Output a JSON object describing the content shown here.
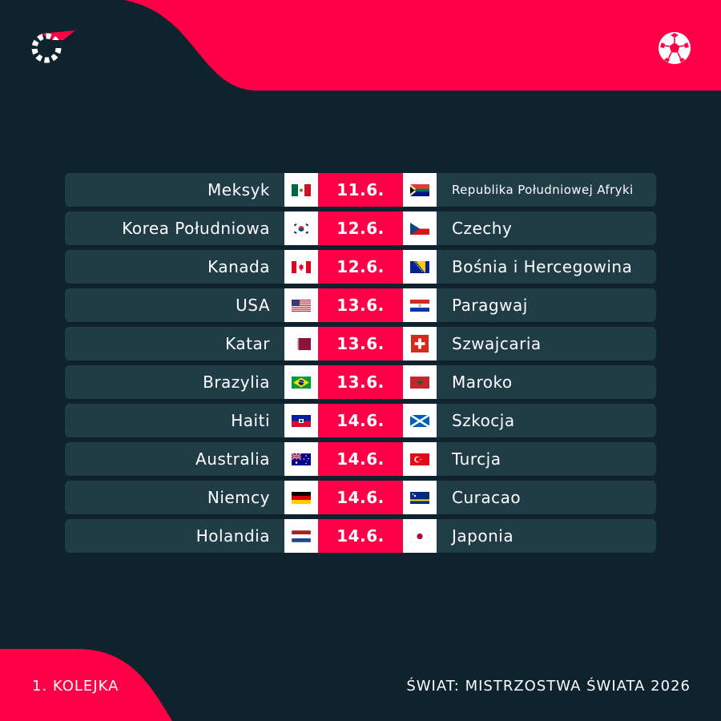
{
  "colors": {
    "background": "#0f232e",
    "accent": "#ff0046",
    "row": "#1f3c47",
    "text": "#ffffff"
  },
  "header": {
    "logo_icon": "flashscore-logo-icon",
    "sport_icon": "football-icon"
  },
  "matches": [
    {
      "home": "Meksyk",
      "home_flag": "mexico-flag-icon",
      "date": "11.6.",
      "away": "Republika Południowej Afryki",
      "away_flag": "south-africa-flag-icon"
    },
    {
      "home": "Korea Południowa",
      "home_flag": "south-korea-flag-icon",
      "date": "12.6.",
      "away": "Czechy",
      "away_flag": "czechia-flag-icon"
    },
    {
      "home": "Kanada",
      "home_flag": "canada-flag-icon",
      "date": "12.6.",
      "away": "Bośnia i Hercegowina",
      "away_flag": "bosnia-flag-icon"
    },
    {
      "home": "USA",
      "home_flag": "usa-flag-icon",
      "date": "13.6.",
      "away": "Paragwaj",
      "away_flag": "paraguay-flag-icon"
    },
    {
      "home": "Katar",
      "home_flag": "qatar-flag-icon",
      "date": "13.6.",
      "away": "Szwajcaria",
      "away_flag": "switzerland-flag-icon"
    },
    {
      "home": "Brazylia",
      "home_flag": "brazil-flag-icon",
      "date": "13.6.",
      "away": "Maroko",
      "away_flag": "morocco-flag-icon"
    },
    {
      "home": "Haiti",
      "home_flag": "haiti-flag-icon",
      "date": "14.6.",
      "away": "Szkocja",
      "away_flag": "scotland-flag-icon"
    },
    {
      "home": "Australia",
      "home_flag": "australia-flag-icon",
      "date": "14.6.",
      "away": "Turcja",
      "away_flag": "turkey-flag-icon"
    },
    {
      "home": "Niemcy",
      "home_flag": "germany-flag-icon",
      "date": "14.6.",
      "away": "Curacao",
      "away_flag": "curacao-flag-icon"
    },
    {
      "home": "Holandia",
      "home_flag": "netherlands-flag-icon",
      "date": "14.6.",
      "away": "Japonia",
      "away_flag": "japan-flag-icon"
    }
  ],
  "footer": {
    "round": "1. KOLEJKA",
    "competition": "ŚWIAT: MISTRZOSTWA ŚWIATA 2026"
  }
}
